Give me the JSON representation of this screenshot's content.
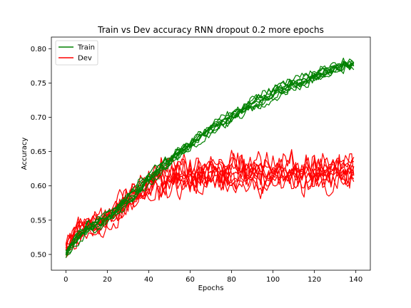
{
  "chart_data": {
    "type": "line",
    "title": "Train vs Dev accuracy RNN dropout 0.2 more epochs",
    "xlabel": "Epochs",
    "ylabel": "Accuracy",
    "xlim": [
      -7,
      147
    ],
    "ylim": [
      0.477,
      0.817
    ],
    "xticks": [
      0,
      20,
      40,
      60,
      80,
      100,
      120,
      140
    ],
    "yticks": [
      0.5,
      0.55,
      0.6,
      0.65,
      0.7,
      0.75,
      0.8
    ],
    "xtick_labels": [
      "0",
      "20",
      "40",
      "60",
      "80",
      "100",
      "120",
      "140"
    ],
    "ytick_labels": [
      "0.50",
      "0.55",
      "0.60",
      "0.65",
      "0.70",
      "0.75",
      "0.80"
    ],
    "grid": false,
    "legend": {
      "placement": "top-left",
      "entries": [
        "Train",
        "Dev"
      ]
    },
    "epochs": 140,
    "runs": 10,
    "series": [
      {
        "name": "Train",
        "color": "#008000",
        "x": [
          0,
          5,
          10,
          15,
          20,
          25,
          30,
          35,
          40,
          45,
          50,
          55,
          60,
          65,
          70,
          75,
          80,
          85,
          90,
          95,
          100,
          105,
          110,
          115,
          120,
          125,
          130,
          135,
          139
        ],
        "y": [
          0.5,
          0.525,
          0.538,
          0.546,
          0.556,
          0.568,
          0.582,
          0.596,
          0.61,
          0.624,
          0.637,
          0.649,
          0.661,
          0.672,
          0.683,
          0.693,
          0.702,
          0.711,
          0.72,
          0.728,
          0.736,
          0.743,
          0.75,
          0.756,
          0.762,
          0.767,
          0.772,
          0.777,
          0.779
        ]
      },
      {
        "name": "Dev",
        "color": "#ff0000",
        "x": [
          0,
          5,
          10,
          15,
          20,
          25,
          30,
          35,
          40,
          45,
          50,
          55,
          60,
          65,
          70,
          75,
          80,
          85,
          90,
          95,
          100,
          105,
          110,
          115,
          120,
          125,
          130,
          135,
          139
        ],
        "y": [
          0.505,
          0.535,
          0.542,
          0.545,
          0.552,
          0.565,
          0.58,
          0.592,
          0.603,
          0.609,
          0.613,
          0.615,
          0.616,
          0.617,
          0.618,
          0.618,
          0.619,
          0.619,
          0.62,
          0.62,
          0.62,
          0.621,
          0.621,
          0.621,
          0.622,
          0.622,
          0.622,
          0.622,
          0.622
        ]
      }
    ]
  }
}
